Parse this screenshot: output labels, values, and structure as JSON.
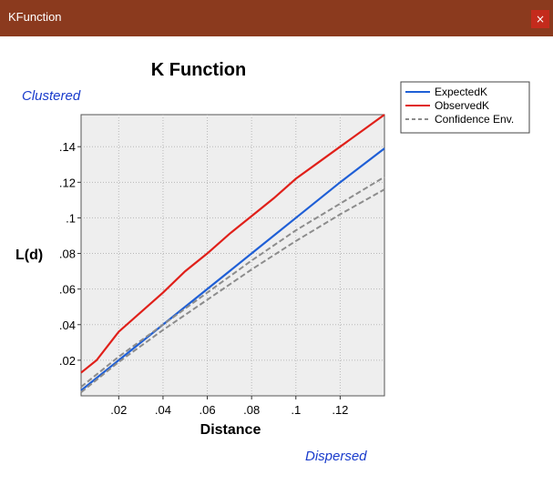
{
  "window": {
    "title": "KFunction",
    "close_glyph": "×",
    "titlebar_color": "#8b3a1e",
    "close_color": "#c42b1c"
  },
  "annotations": {
    "clustered": "Clustered",
    "dispersed": "Dispersed",
    "color": "#1a3ccc"
  },
  "chart_data": {
    "type": "line",
    "title": "K Function",
    "xlabel": "Distance",
    "ylabel": "L(d)",
    "xlim": [
      0.003,
      0.14
    ],
    "ylim": [
      0.0,
      0.158
    ],
    "xticks": [
      {
        "v": 0.02,
        "label": ".02"
      },
      {
        "v": 0.04,
        "label": ".04"
      },
      {
        "v": 0.06,
        "label": ".06"
      },
      {
        "v": 0.08,
        "label": ".08"
      },
      {
        "v": 0.1,
        "label": ".1"
      },
      {
        "v": 0.12,
        "label": ".12"
      }
    ],
    "yticks": [
      {
        "v": 0.02,
        "label": ".02"
      },
      {
        "v": 0.04,
        "label": ".04"
      },
      {
        "v": 0.06,
        "label": ".06"
      },
      {
        "v": 0.08,
        "label": ".08"
      },
      {
        "v": 0.1,
        "label": ".1"
      },
      {
        "v": 0.12,
        "label": ".12"
      },
      {
        "v": 0.14,
        "label": ".14"
      }
    ],
    "grid": true,
    "legend_position": "top-right",
    "plot_background": "#eeeeee",
    "series": [
      {
        "name": "ExpectedK",
        "color": "#1f5fd6",
        "dashed": false,
        "x": [
          0.003,
          0.02,
          0.04,
          0.06,
          0.08,
          0.1,
          0.12,
          0.14
        ],
        "y": [
          0.003,
          0.02,
          0.04,
          0.06,
          0.08,
          0.1,
          0.12,
          0.139
        ]
      },
      {
        "name": "ObservedK",
        "color": "#e0201a",
        "dashed": false,
        "x": [
          0.003,
          0.01,
          0.02,
          0.03,
          0.04,
          0.05,
          0.06,
          0.07,
          0.08,
          0.09,
          0.1,
          0.11,
          0.12,
          0.13,
          0.14
        ],
        "y": [
          0.013,
          0.02,
          0.036,
          0.047,
          0.058,
          0.07,
          0.08,
          0.091,
          0.101,
          0.111,
          0.122,
          0.131,
          0.14,
          0.149,
          0.158
        ]
      },
      {
        "name": "Confidence Env.",
        "color": "#8c8c8c",
        "dashed": true,
        "x": [
          0.003,
          0.02,
          0.04,
          0.06,
          0.08,
          0.1,
          0.12,
          0.14
        ],
        "y": [
          0.005,
          0.022,
          0.04,
          0.058,
          0.076,
          0.093,
          0.108,
          0.123
        ]
      },
      {
        "name": "",
        "color": "#8c8c8c",
        "dashed": true,
        "x": [
          0.003,
          0.02,
          0.04,
          0.06,
          0.08,
          0.1,
          0.12,
          0.14
        ],
        "y": [
          0.002,
          0.019,
          0.037,
          0.054,
          0.071,
          0.087,
          0.102,
          0.116
        ]
      }
    ]
  }
}
